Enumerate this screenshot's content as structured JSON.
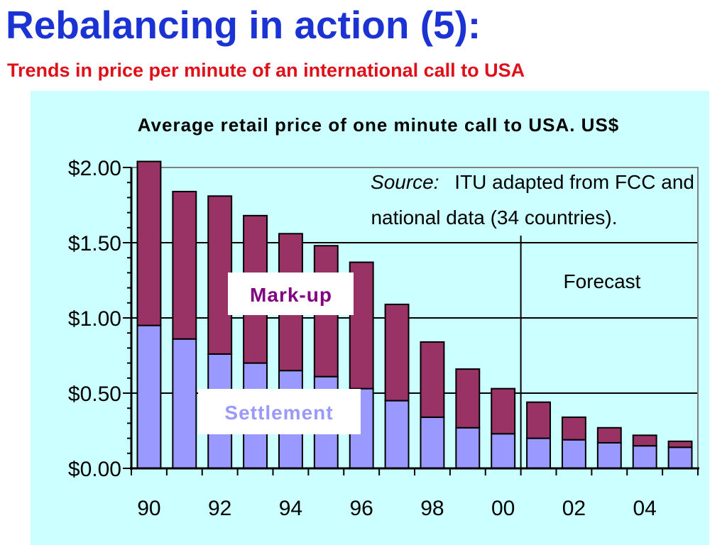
{
  "slide": {
    "title": "Rebalancing in action (5):",
    "subtitle": "Trends in price per minute of an international call to USA"
  },
  "colors": {
    "title": "#1c33d4",
    "subtitle": "#e0101a",
    "panel_background": "#ccffff",
    "settlement": "#9999ff",
    "markup": "#993366",
    "markup_label_text": "#800080",
    "settlement_label_text": "#9999ff"
  },
  "chart_data": {
    "type": "bar",
    "stacked": true,
    "title": "Average retail price of one minute call to USA. US$",
    "categories": [
      "90",
      "91",
      "92",
      "93",
      "94",
      "95",
      "96",
      "97",
      "98",
      "99",
      "00",
      "01",
      "02",
      "03",
      "04",
      "05"
    ],
    "x_tick_labels": [
      "90",
      "92",
      "94",
      "96",
      "98",
      "00",
      "02",
      "04"
    ],
    "series": [
      {
        "name": "Settlement",
        "values": [
          0.95,
          0.86,
          0.76,
          0.7,
          0.65,
          0.61,
          0.53,
          0.45,
          0.34,
          0.27,
          0.23,
          0.2,
          0.19,
          0.17,
          0.15,
          0.14
        ]
      },
      {
        "name": "Mark-up",
        "values": [
          1.09,
          0.98,
          1.05,
          0.98,
          0.91,
          0.87,
          0.84,
          0.64,
          0.5,
          0.39,
          0.3,
          0.24,
          0.15,
          0.1,
          0.07,
          0.04
        ]
      }
    ],
    "ylim": [
      0,
      2.0
    ],
    "y_tick_labels": [
      "$0.00",
      "$0.50",
      "$1.00",
      "$1.50",
      "$2.00"
    ],
    "y_tick_values": [
      0,
      0.5,
      1.0,
      1.5,
      2.0
    ],
    "grid": true,
    "forecast_label": "Forecast",
    "forecast_start_category": "00",
    "source_label": "Source:",
    "source_text_line1": "ITU adapted from FCC and",
    "source_text_line2": "national data (34 countries)."
  }
}
